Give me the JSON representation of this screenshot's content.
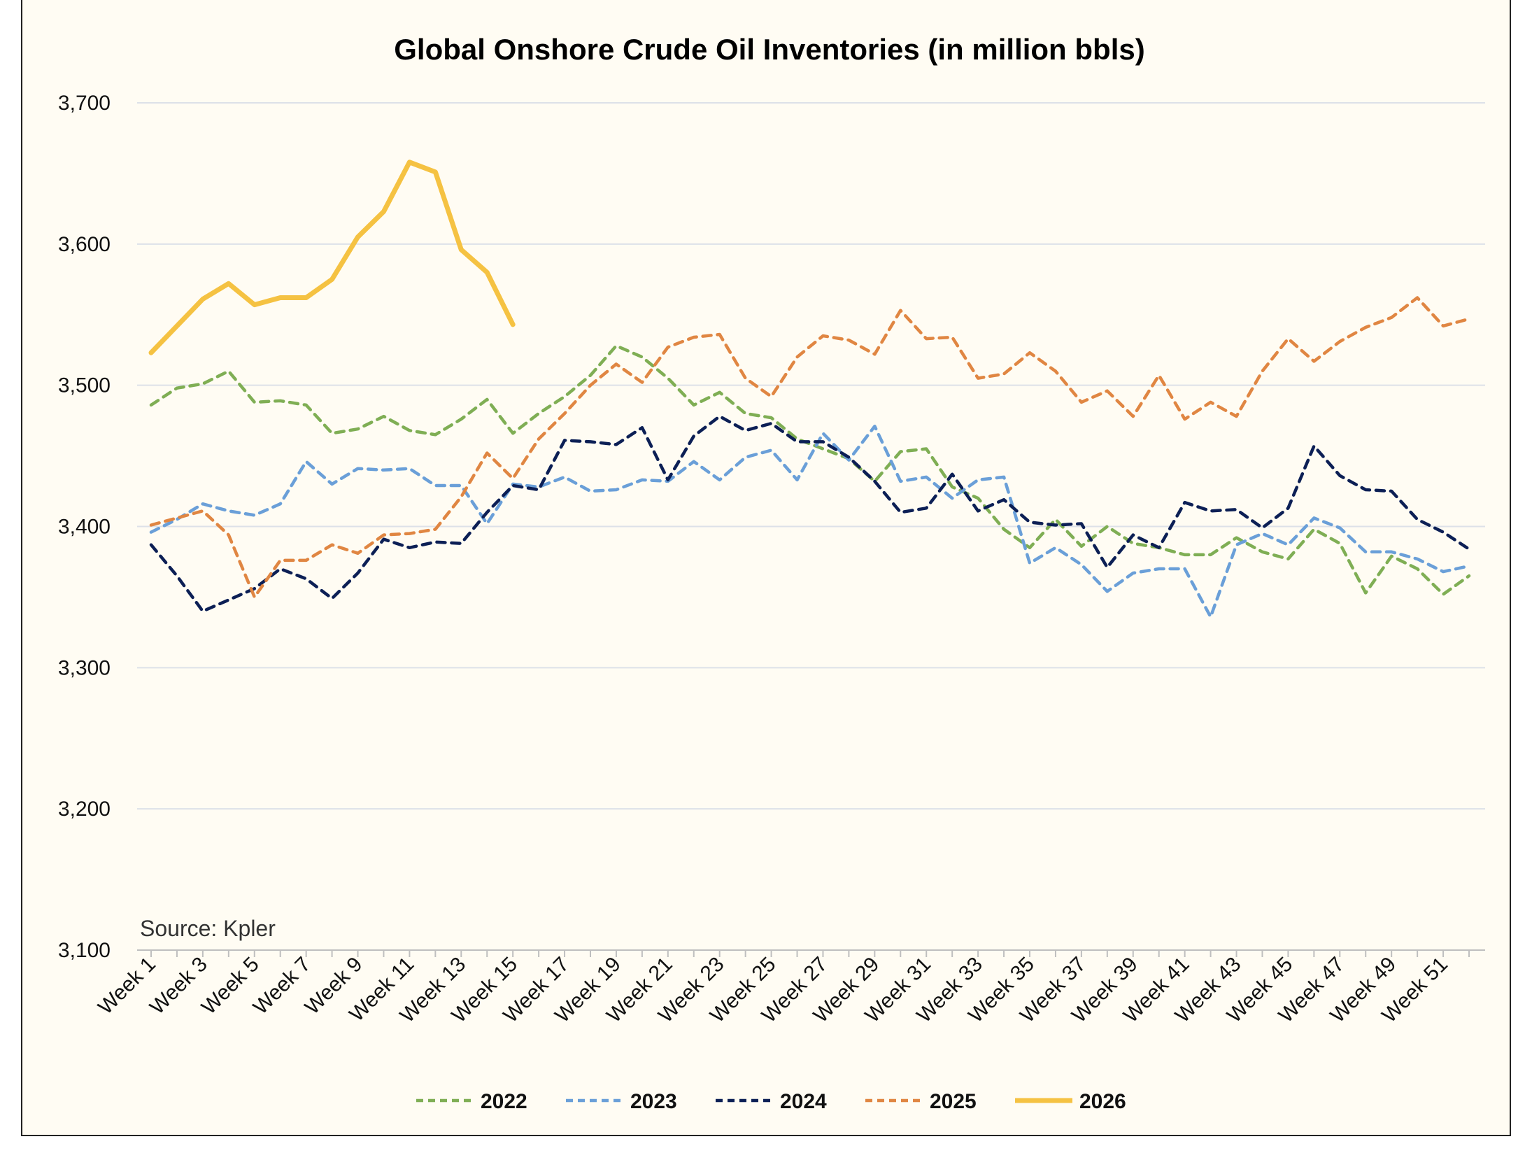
{
  "chart_data": {
    "type": "line",
    "title": "Global Onshore Crude Oil Inventories (in million bbls)",
    "source": "Source: Kpler",
    "xlabel": "",
    "ylabel": "",
    "ylim": [
      3100,
      3700
    ],
    "yticks": [
      3100,
      3200,
      3300,
      3400,
      3500,
      3600,
      3700
    ],
    "ytick_labels": [
      "3,100",
      "3,200",
      "3,300",
      "3,400",
      "3,500",
      "3,600",
      "3,700"
    ],
    "grid": true,
    "legend_position": "bottom",
    "x_tick_labels": [
      "Week 1",
      "Week 3",
      "Week 5",
      "Week 7",
      "Week 9",
      "Week 11",
      "Week 13",
      "Week 15",
      "Week 17",
      "Week 19",
      "Week 21",
      "Week 23",
      "Week 25",
      "Week 27",
      "Week 29",
      "Week 31",
      "Week 33",
      "Week 35",
      "Week 37",
      "Week 39",
      "Week 41",
      "Week 43",
      "Week 45",
      "Week 47",
      "Week 49",
      "Week 51"
    ],
    "num_weeks": 52,
    "series": [
      {
        "name": "2022",
        "color": "#7fae54",
        "style": "dashed",
        "values": [
          3486,
          3498,
          3501,
          3510,
          3488,
          3489,
          3486,
          3466,
          3469,
          3478,
          3468,
          3465,
          3476,
          3490,
          3466,
          3480,
          3492,
          3507,
          3528,
          3520,
          3505,
          3486,
          3495,
          3480,
          3477,
          3462,
          3455,
          3448,
          3432,
          3453,
          3455,
          3428,
          3420,
          3398,
          3385,
          3405,
          3386,
          3400,
          3388,
          3385,
          3380,
          3380,
          3392,
          3382,
          3377,
          3398,
          3388,
          3353,
          3379,
          3370,
          3352,
          3365
        ]
      },
      {
        "name": "2023",
        "color": "#6a9fd8",
        "style": "dashed",
        "values": [
          3396,
          3405,
          3416,
          3411,
          3408,
          3416,
          3446,
          3430,
          3441,
          3440,
          3441,
          3429,
          3429,
          3402,
          3430,
          3428,
          3435,
          3425,
          3426,
          3433,
          3432,
          3446,
          3433,
          3449,
          3454,
          3433,
          3466,
          3447,
          3471,
          3432,
          3435,
          3420,
          3433,
          3435,
          3374,
          3385,
          3373,
          3354,
          3367,
          3370,
          3370,
          3336,
          3387,
          3395,
          3387,
          3406,
          3399,
          3382,
          3382,
          3377,
          3368,
          3372
        ]
      },
      {
        "name": "2024",
        "color": "#0c1f55",
        "style": "dashed",
        "values": [
          3387,
          3365,
          3340,
          3348,
          3356,
          3370,
          3363,
          3349,
          3367,
          3391,
          3385,
          3389,
          3388,
          3410,
          3429,
          3426,
          3461,
          3460,
          3458,
          3470,
          3433,
          3464,
          3478,
          3468,
          3473,
          3460,
          3460,
          3449,
          3432,
          3410,
          3413,
          3437,
          3411,
          3419,
          3403,
          3401,
          3402,
          3371,
          3394,
          3385,
          3417,
          3411,
          3412,
          3399,
          3413,
          3457,
          3436,
          3426,
          3425,
          3405,
          3396,
          3384
        ]
      },
      {
        "name": "2025",
        "color": "#e08642",
        "style": "dashed",
        "values": [
          3401,
          3406,
          3411,
          3394,
          3350,
          3376,
          3376,
          3387,
          3381,
          3394,
          3395,
          3398,
          3421,
          3452,
          3434,
          3462,
          3480,
          3500,
          3515,
          3502,
          3527,
          3534,
          3536,
          3505,
          3492,
          3520,
          3535,
          3532,
          3522,
          3553,
          3533,
          3534,
          3505,
          3508,
          3523,
          3510,
          3488,
          3496,
          3478,
          3507,
          3476,
          3488,
          3478,
          3510,
          3533,
          3517,
          3531,
          3541,
          3548,
          3562,
          3542,
          3547
        ]
      },
      {
        "name": "2026",
        "color": "#f5c242",
        "style": "solid",
        "values": [
          3523,
          3542,
          3561,
          3572,
          3557,
          3562,
          3562,
          3575,
          3605,
          3623,
          3658,
          3651,
          3596,
          3580,
          3543
        ]
      }
    ]
  }
}
